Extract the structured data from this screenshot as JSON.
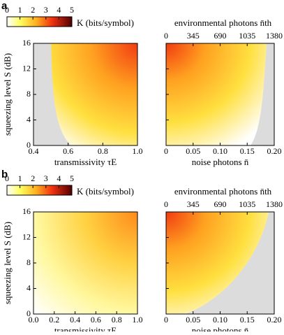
{
  "chart_data": [
    {
      "type": "heatmap",
      "panel": "a",
      "xlabel": "transmissivity τE",
      "ylabel": "squeezing level S (dB)",
      "xlim": [
        0.4,
        1
      ],
      "xticks": [
        0.4,
        0.6,
        0.8,
        {
          "value": 1,
          "label": "1.0"
        }
      ],
      "ylim": [
        0,
        16
      ],
      "yticks": [
        0,
        4,
        8,
        12,
        16
      ],
      "colorbar": {
        "label": "K (bits/symbol)",
        "lim": [
          0,
          5
        ],
        "ticks": [
          0,
          1,
          2,
          3,
          4,
          5
        ]
      }
    },
    {
      "type": "heatmap",
      "xlabel": "noise photons n̄",
      "x2label": "environmental photons n̄th",
      "xlim": [
        0,
        0.2
      ],
      "xticks": [
        0,
        0.05,
        {
          "value": 0.1,
          "label": "0.10"
        },
        0.15,
        {
          "value": 0.2,
          "label": "0.20"
        }
      ],
      "x2lim": [
        0,
        1380
      ],
      "x2ticks": [
        0,
        345,
        690,
        1035,
        1380
      ],
      "ylim": [
        0,
        16
      ],
      "yticks": [
        0,
        4,
        8,
        12,
        16
      ]
    },
    {
      "type": "heatmap",
      "panel": "b",
      "xlabel": "transmissivity τE",
      "ylabel": "squeezing level S (dB)",
      "xlim": [
        0,
        1
      ],
      "xticks": [
        {
          "value": 0,
          "label": "0.0"
        },
        0.2,
        0.4,
        0.6,
        0.8,
        {
          "value": 1,
          "label": "1.0"
        }
      ],
      "ylim": [
        0,
        16
      ],
      "yticks": [
        0,
        4,
        8,
        12,
        16
      ],
      "colorbar": {
        "label": "K (bits/symbol)",
        "lim": [
          0,
          5
        ],
        "ticks": [
          0,
          1,
          2,
          3,
          4,
          5
        ]
      }
    },
    {
      "type": "heatmap",
      "xlabel": "noise photons n̄",
      "x2label": "environmental photons n̄th",
      "xlim": [
        0,
        0.2
      ],
      "xticks": [
        0,
        0.05,
        {
          "value": 0.1,
          "label": "0.10"
        },
        0.15,
        {
          "value": 0.2,
          "label": "0.20"
        }
      ],
      "x2lim": [
        0,
        1380
      ],
      "x2ticks": [
        0,
        345,
        690,
        1035,
        1380
      ],
      "ylim": [
        0,
        16
      ],
      "yticks": [
        0,
        4,
        8,
        12,
        16
      ]
    }
  ]
}
